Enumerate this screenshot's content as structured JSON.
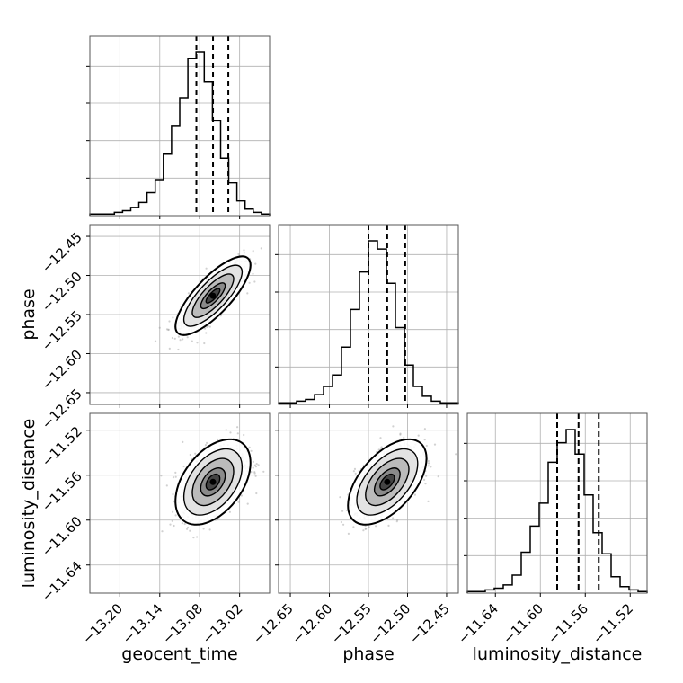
{
  "chart_data": {
    "type": "corner",
    "parameters": [
      "geocent_time",
      "phase",
      "luminosity_distance"
    ],
    "ranges": {
      "geocent_time": [
        -13.245,
        -12.975
      ],
      "phase": [
        -12.665,
        -12.435
      ],
      "luminosity_distance": [
        -11.665,
        -11.505
      ]
    },
    "ticks": {
      "geocent_time": [
        -13.2,
        -13.14,
        -13.08,
        -13.02
      ],
      "phase": [
        -12.65,
        -12.6,
        -12.55,
        -12.5,
        -12.45
      ],
      "luminosity_distance": [
        -11.64,
        -11.6,
        -11.56,
        -11.52
      ]
    },
    "tick_labels": {
      "geocent_time": [
        "−13.20",
        "−13.14",
        "−13.08",
        "−13.02"
      ],
      "phase": [
        "−12.65",
        "−12.60",
        "−12.55",
        "−12.50",
        "−12.45"
      ],
      "luminosity_distance": [
        "−11.64",
        "−11.60",
        "−11.56",
        "−11.52"
      ]
    },
    "quantiles": {
      "geocent_time": [
        -13.085,
        -13.06,
        -13.037
      ],
      "phase": [
        -12.55,
        -12.526,
        -12.503
      ],
      "luminosity_distance": [
        -11.585,
        -11.566,
        -11.548
      ]
    },
    "hist_counts": {
      "geocent_time": [
        1,
        1,
        1,
        2,
        3,
        5,
        8,
        14,
        22,
        38,
        55,
        72,
        96,
        100,
        82,
        58,
        35,
        20,
        9,
        4,
        2,
        1
      ],
      "phase": [
        1,
        1,
        2,
        3,
        6,
        11,
        18,
        35,
        58,
        81,
        100,
        95,
        74,
        47,
        24,
        11,
        5,
        2,
        1,
        1
      ],
      "luminosity_distance": [
        1,
        1,
        2,
        3,
        5,
        11,
        25,
        41,
        55,
        80,
        92,
        100,
        85,
        60,
        37,
        24,
        10,
        4,
        2,
        1
      ]
    },
    "stats_2d": {
      "phase_vs_geocent_time": {
        "mx": -13.06,
        "my": -12.526,
        "sx": 0.023,
        "sy": 0.0205,
        "rho": 0.78
      },
      "luminosity_distance_vs_geocent_time": {
        "mx": -13.06,
        "my": -11.566,
        "sx": 0.023,
        "sy": 0.0155,
        "rho": 0.45
      },
      "luminosity_distance_vs_phase": {
        "mx": -12.526,
        "my": -11.566,
        "sx": 0.0205,
        "sy": 0.0155,
        "rho": 0.55
      }
    },
    "grid": true,
    "colors": {
      "line": "#000000",
      "grid": "#b0b0b0",
      "points": "#999999"
    }
  }
}
